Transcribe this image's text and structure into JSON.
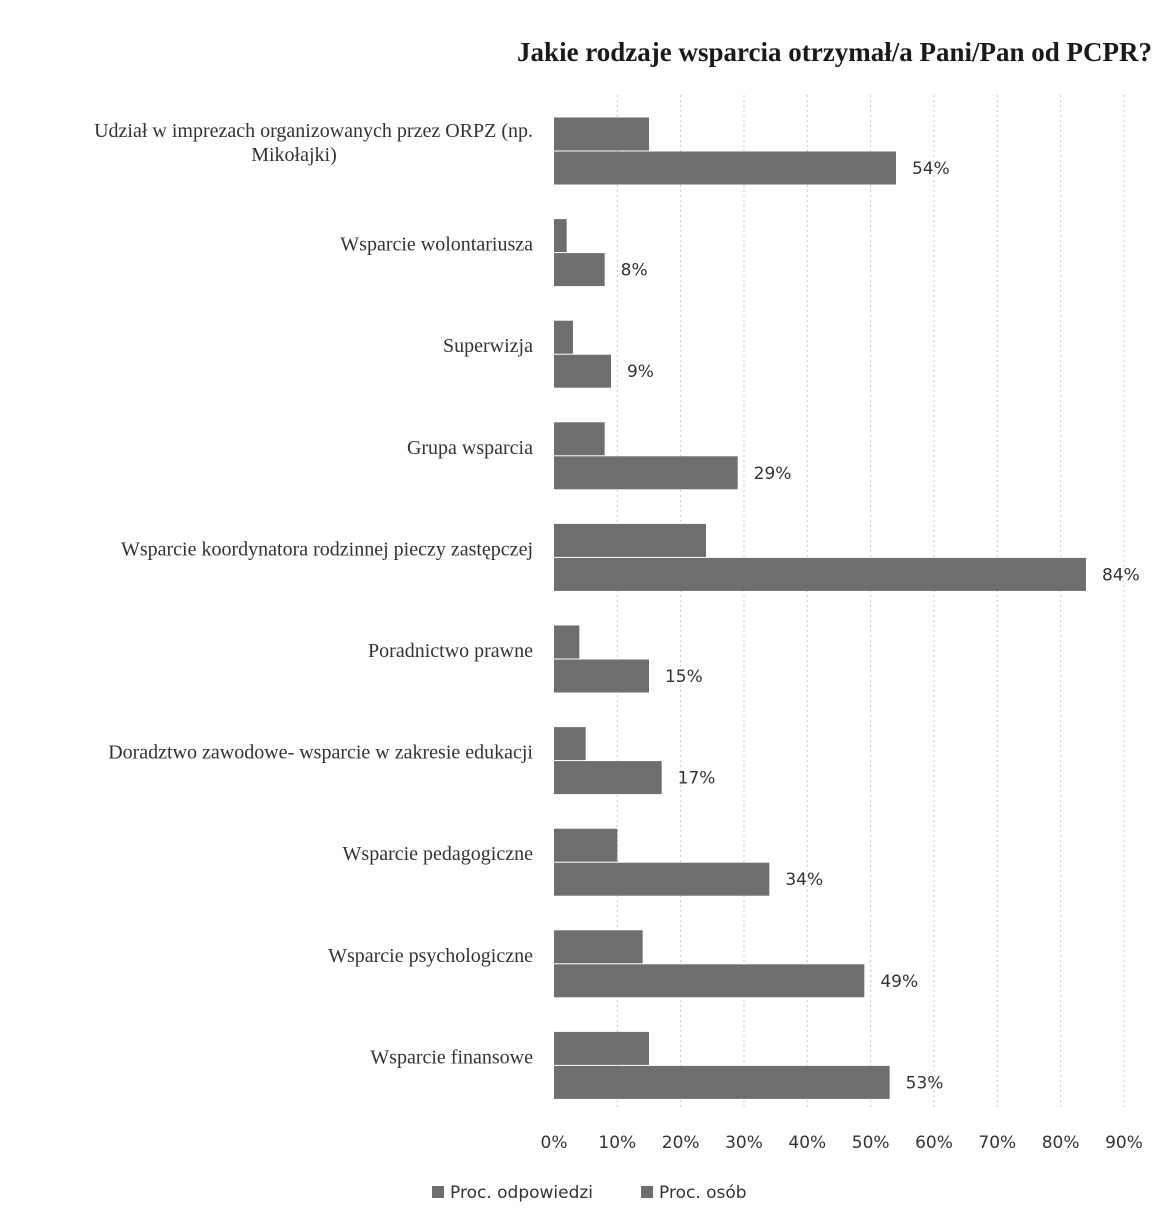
{
  "chart_data": {
    "type": "bar",
    "orientation": "horizontal",
    "title": "Jakie rodzaje wsparcia otrzymał/a Pani/Pan od PCPR?",
    "categories": [
      [
        "Udział w imprezach organizowanych przez ORPZ (np.",
        "Mikołajki)"
      ],
      [
        "Wsparcie wolontariusza"
      ],
      [
        "Superwizja"
      ],
      [
        "Grupa wsparcia"
      ],
      [
        "Wsparcie koordynatora rodzinnej pieczy zastępczej"
      ],
      [
        "Poradnictwo prawne"
      ],
      [
        "Doradztwo zawodowe- wsparcie w zakresie edukacji"
      ],
      [
        "Wsparcie pedagogiczne"
      ],
      [
        "Wsparcie psychologiczne"
      ],
      [
        "Wsparcie finansowe"
      ]
    ],
    "series": [
      {
        "name": "Proc. odpowiedzi",
        "values": [
          15,
          2,
          3,
          8,
          24,
          4,
          5,
          10,
          14,
          15
        ],
        "color": "#6e6e6e"
      },
      {
        "name": "Proc. osób",
        "values": [
          54,
          8,
          9,
          29,
          84,
          15,
          17,
          34,
          49,
          53
        ],
        "color": "#6e6e6e"
      }
    ],
    "data_labels": [
      "54%",
      "8%",
      "9%",
      "29%",
      "84%",
      "15%",
      "17%",
      "34%",
      "49%",
      "53%"
    ],
    "x_ticks": [
      "0%",
      "10%",
      "20%",
      "30%",
      "40%",
      "50%",
      "60%",
      "70%",
      "80%",
      "90%"
    ],
    "xlim": [
      0,
      90
    ],
    "grid": "vertical-dotted",
    "legend_position": "bottom"
  }
}
